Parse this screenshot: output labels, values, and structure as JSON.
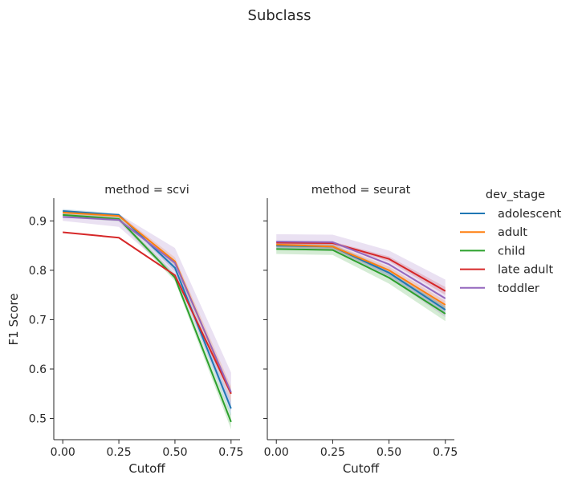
{
  "chart_data": {
    "type": "line",
    "title": "Subclass",
    "ylabel": "F1 Score",
    "xlabel": "Cutoff",
    "x": [
      0.0,
      0.25,
      0.5,
      0.75
    ],
    "xticks": [
      "0.00",
      "0.25",
      "0.50",
      "0.75"
    ],
    "yticks": [
      "0.5",
      "0.6",
      "0.7",
      "0.8",
      "0.9"
    ],
    "xlim": [
      -0.04,
      0.79
    ],
    "ylim": [
      0.457,
      0.946
    ],
    "legend": {
      "title": "dev_stage",
      "placement": "right",
      "entries": [
        "adolescent",
        "adult",
        "child",
        "late adult",
        "toddler"
      ]
    },
    "colors": {
      "adolescent": "#1f77b4",
      "adult": "#ff7f0e",
      "child": "#2ca02c",
      "late adult": "#d62728",
      "toddler": "#9467bd"
    },
    "panels": [
      {
        "title": "method = scvi",
        "series": [
          {
            "name": "adolescent",
            "values": [
              0.92,
              0.912,
              0.805,
              0.52
            ],
            "ci_low": [
              0.916,
              0.909,
              0.798,
              0.505
            ],
            "ci_high": [
              0.924,
              0.915,
              0.812,
              0.535
            ]
          },
          {
            "name": "adult",
            "values": [
              0.917,
              0.91,
              0.818,
              0.55
            ],
            "ci_low": [
              0.912,
              0.906,
              0.81,
              0.535
            ],
            "ci_high": [
              0.922,
              0.914,
              0.826,
              0.565
            ]
          },
          {
            "name": "child",
            "values": [
              0.912,
              0.904,
              0.785,
              0.493
            ],
            "ci_low": [
              0.907,
              0.899,
              0.778,
              0.478
            ],
            "ci_high": [
              0.917,
              0.909,
              0.792,
              0.508
            ]
          },
          {
            "name": "late adult",
            "values": [
              0.877,
              0.866,
              0.79,
              0.55
            ],
            "ci_low": [
              0.876,
              0.865,
              0.789,
              0.548
            ],
            "ci_high": [
              0.878,
              0.867,
              0.791,
              0.552
            ]
          },
          {
            "name": "toddler",
            "values": [
              0.908,
              0.902,
              0.815,
              0.553
            ],
            "ci_low": [
              0.9,
              0.888,
              0.788,
              0.515
            ],
            "ci_high": [
              0.916,
              0.914,
              0.845,
              0.593
            ]
          }
        ]
      },
      {
        "title": "method = seurat",
        "series": [
          {
            "name": "adolescent",
            "values": [
              0.85,
              0.848,
              0.795,
              0.72
            ],
            "ci_low": [
              0.845,
              0.843,
              0.788,
              0.712
            ],
            "ci_high": [
              0.855,
              0.853,
              0.802,
              0.728
            ]
          },
          {
            "name": "adult",
            "values": [
              0.852,
              0.848,
              0.8,
              0.73
            ],
            "ci_low": [
              0.847,
              0.843,
              0.793,
              0.722
            ],
            "ci_high": [
              0.857,
              0.853,
              0.807,
              0.738
            ]
          },
          {
            "name": "child",
            "values": [
              0.843,
              0.841,
              0.785,
              0.712
            ],
            "ci_low": [
              0.833,
              0.831,
              0.773,
              0.697
            ],
            "ci_high": [
              0.853,
              0.851,
              0.797,
              0.727
            ]
          },
          {
            "name": "late adult",
            "values": [
              0.856,
              0.855,
              0.823,
              0.758
            ],
            "ci_low": [
              0.853,
              0.852,
              0.818,
              0.75
            ],
            "ci_high": [
              0.859,
              0.858,
              0.828,
              0.766
            ]
          },
          {
            "name": "toddler",
            "values": [
              0.858,
              0.857,
              0.812,
              0.743
            ],
            "ci_low": [
              0.843,
              0.842,
              0.785,
              0.705
            ],
            "ci_high": [
              0.873,
              0.872,
              0.84,
              0.781
            ]
          }
        ]
      }
    ]
  }
}
